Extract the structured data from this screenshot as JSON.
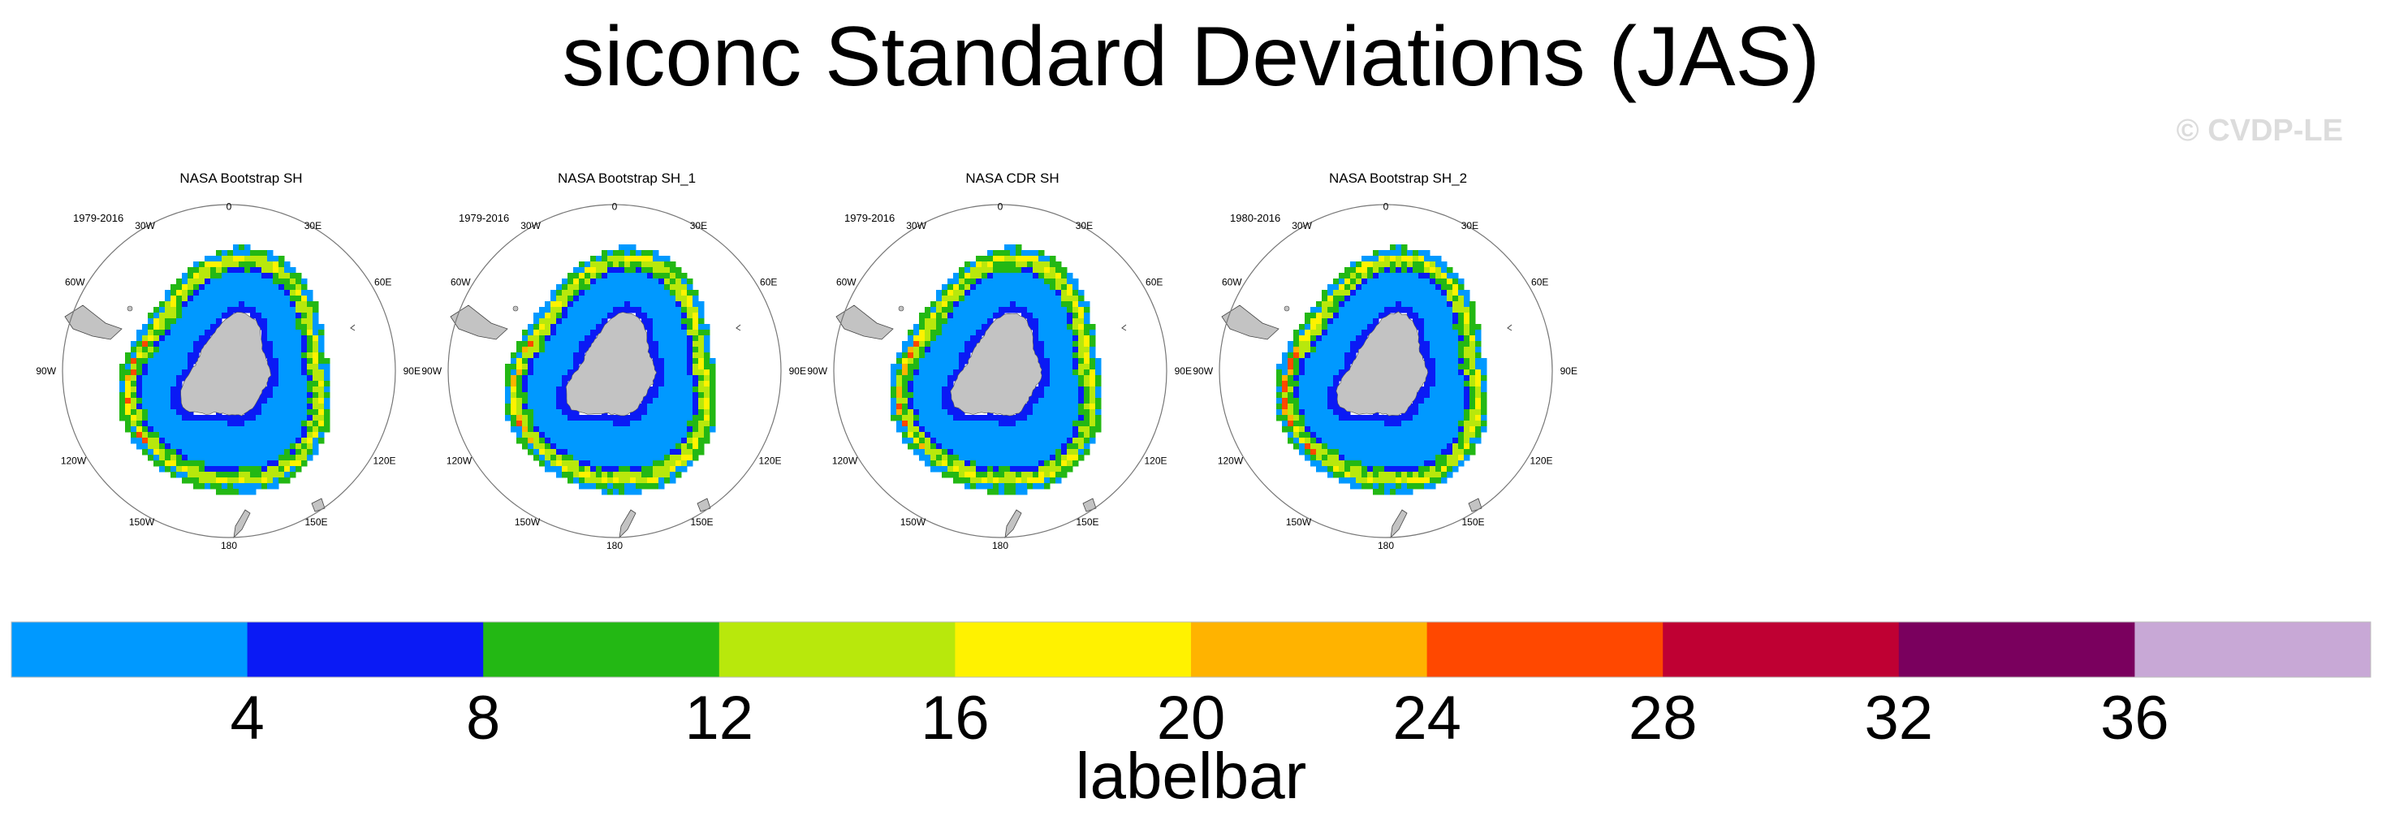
{
  "title": "siconc Standard Deviations (JAS)",
  "copyright": "© CVDP-LE",
  "chart_data": {
    "type": "heatmap",
    "projection": "south polar stereographic",
    "variable": "siconc",
    "statistic": "standard deviation",
    "season": "JAS",
    "panels": [
      {
        "title": "NASA Bootstrap SH",
        "period": "1979-2016"
      },
      {
        "title": "NASA Bootstrap SH_1",
        "period": "1979-2016"
      },
      {
        "title": "NASA CDR SH",
        "period": "1979-2016"
      },
      {
        "title": "NASA Bootstrap SH_2",
        "period": "1980-2016"
      }
    ],
    "longitude_labels": [
      "0",
      "30E",
      "60E",
      "90E",
      "120E",
      "150E",
      "180",
      "150W",
      "120W",
      "90W",
      "60W",
      "30W"
    ],
    "colorbar": {
      "title": "labelbar",
      "levels": [
        4,
        8,
        12,
        16,
        20,
        24,
        28,
        32,
        36
      ],
      "level_labels": [
        "4",
        "8",
        "12",
        "16",
        "20",
        "24",
        "28",
        "32",
        "36"
      ],
      "colors": [
        "#0099ff",
        "#0a1af5",
        "#23b814",
        "#b8e80c",
        "#fff200",
        "#ffb300",
        "#ff4800",
        "#bf0033",
        "#7a005e",
        "#c8a8d6"
      ]
    },
    "ring_bins": {
      "inner_low_bin": 0,
      "mid_bin": 1,
      "mid_high_bin": 2,
      "edge_bins": [
        3,
        4,
        5,
        6
      ],
      "outer_bin": 0
    }
  }
}
